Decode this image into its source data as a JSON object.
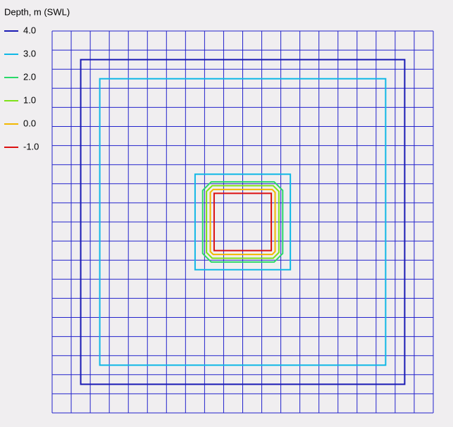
{
  "chart_data": {
    "type": "contour",
    "legend_title": "Depth, m (SWL)",
    "xlim": [
      0,
      20
    ],
    "ylim": [
      0,
      20
    ],
    "xticks": [
      0,
      1,
      2,
      3,
      4,
      5,
      6,
      7,
      8,
      9,
      10,
      11,
      12,
      13,
      14,
      15,
      16,
      17,
      18,
      19,
      20
    ],
    "yticks": [
      0,
      1,
      2,
      3,
      4,
      5,
      6,
      7,
      8,
      9,
      10,
      11,
      12,
      13,
      14,
      15,
      16,
      17,
      18,
      19,
      20
    ],
    "grid": true,
    "grid_color": "#2222cc",
    "series": [
      {
        "name": "4.0",
        "value": 4,
        "color": "#1a1ab4",
        "rects": [
          [
            1.5,
            1.5,
            18.5,
            18.5,
            0
          ]
        ]
      },
      {
        "name": "3.0",
        "value": 3,
        "color": "#10b8e6",
        "rects": [
          [
            2.5,
            2.5,
            17.5,
            17.5,
            0
          ],
          [
            7.5,
            7.5,
            12.5,
            12.5,
            0
          ]
        ]
      },
      {
        "name": "2.0",
        "value": 2,
        "color": "#2ad86a",
        "rects": [
          [
            7.9,
            7.9,
            12.1,
            12.1,
            0.45
          ]
        ]
      },
      {
        "name": "1.0",
        "value": 1,
        "color": "#7ee21a",
        "rects": [
          [
            8.1,
            8.1,
            11.9,
            11.9,
            0.3
          ]
        ]
      },
      {
        "name": "0.0",
        "value": 0,
        "color": "#f2b800",
        "rects": [
          [
            8.3,
            8.3,
            11.7,
            11.7,
            0.15
          ]
        ]
      },
      {
        "name": "-1.0",
        "value": -1,
        "color": "#dc1010",
        "rects": [
          [
            8.5,
            8.5,
            11.5,
            11.5,
            0
          ]
        ]
      }
    ]
  }
}
